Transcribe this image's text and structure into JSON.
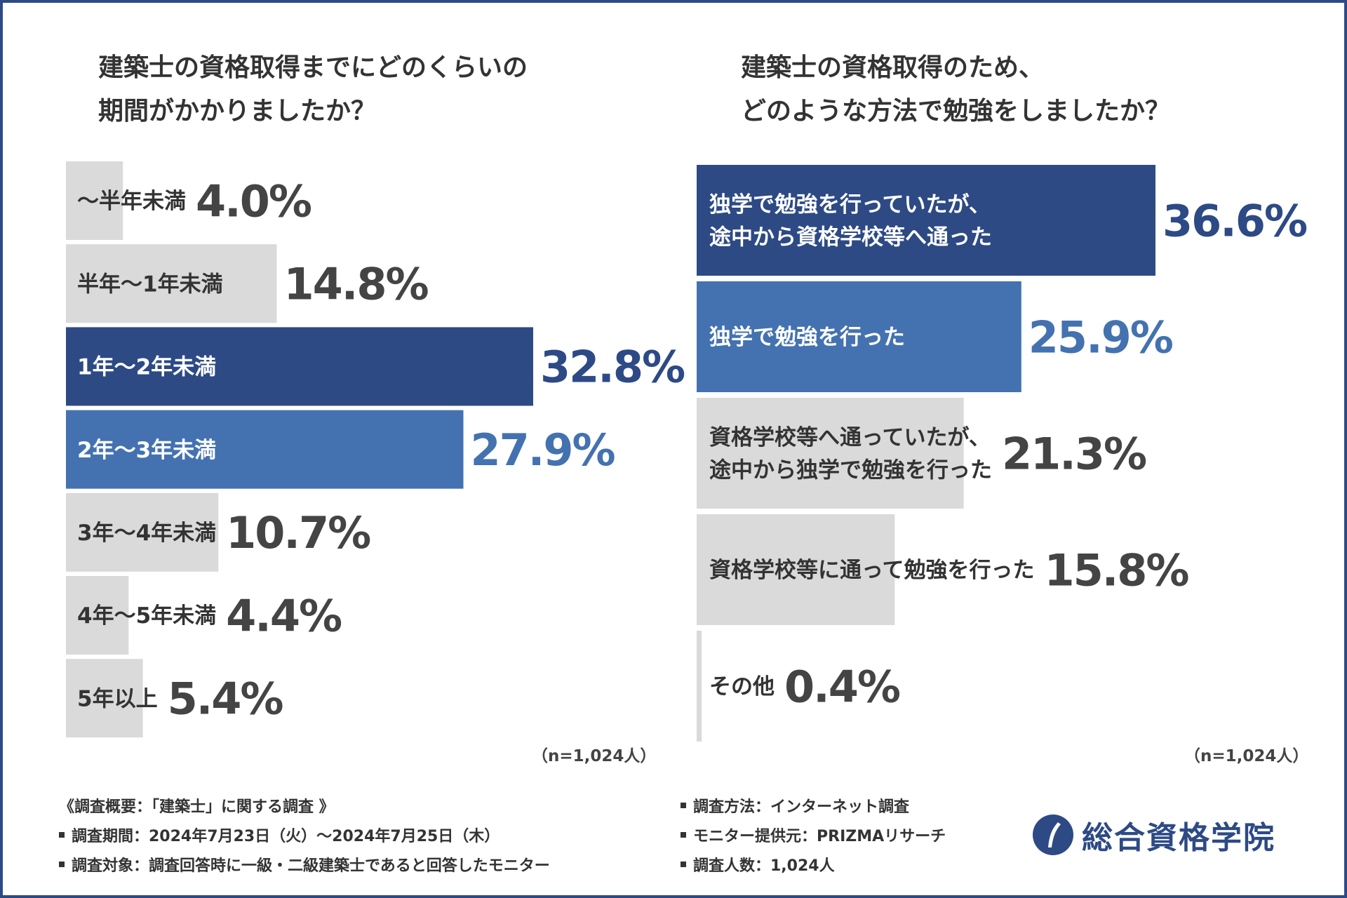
{
  "colors": {
    "dark": "#2d4a85",
    "mid": "#4472b0",
    "gray": "#dadada",
    "text": "#333333",
    "bar_text": "#ffffff"
  },
  "chart_data": [
    {
      "type": "bar",
      "orientation": "horizontal",
      "title": "建築士の資格取得までにどのくらいの期間がかかりましたか？",
      "title_lines": [
        "建築士の資格取得までにどのくらいの",
        "期間がかかりましたか？"
      ],
      "categories": [
        "〜半年未満",
        "半年〜1年未満",
        "1年〜2年未満",
        "2年〜3年未満",
        "3年〜4年未満",
        "4年〜5年未満",
        "5年以上"
      ],
      "values": [
        4.0,
        14.8,
        32.8,
        27.9,
        10.7,
        4.4,
        5.4
      ],
      "value_labels": [
        "4.0%",
        "14.8%",
        "32.8%",
        "27.9%",
        "10.7%",
        "4.4%",
        "5.4%"
      ],
      "highlight": [
        "gray",
        "gray",
        "dark",
        "mid",
        "gray",
        "gray",
        "gray"
      ],
      "xlim": [
        0,
        32.8
      ],
      "unit": "%",
      "note": "（n=1,024人）"
    },
    {
      "type": "bar",
      "orientation": "horizontal",
      "title": "建築士の資格取得のため、どのような方法で勉強をしましたか？",
      "title_lines": [
        "建築士の資格取得のため、",
        "どのような方法で勉強をしましたか？"
      ],
      "categories": [
        "独学で勉強を行っていたが、途中から資格学校等へ通った",
        "独学で勉強を行った",
        "資格学校等へ通っていたが、途中から独学で勉強を行った",
        "資格学校等に通って勉強を行った",
        "その他"
      ],
      "category_lines": [
        [
          "独学で勉強を行っていたが、",
          "途中から資格学校等へ通った"
        ],
        [
          "独学で勉強を行った"
        ],
        [
          "資格学校等へ通っていたが、",
          "途中から独学で勉強を行った"
        ],
        [
          "資格学校等に通って勉強を行った"
        ],
        [
          "その他"
        ]
      ],
      "values": [
        36.6,
        25.9,
        21.3,
        15.8,
        0.4
      ],
      "value_labels": [
        "36.6%",
        "25.9%",
        "21.3%",
        "15.8%",
        "0.4%"
      ],
      "highlight": [
        "dark",
        "mid",
        "gray",
        "gray",
        "gray"
      ],
      "xlim": [
        0,
        36.6
      ],
      "unit": "%",
      "note": "（n=1,024人）"
    }
  ],
  "footer": {
    "left": [
      "《調査概要：「建築士」に関する調査 》",
      "調査期間：2024年7月23日（火）〜2024年7月25日（木）",
      "調査対象：調査回答時に一級・二級建築士であると回答したモニター"
    ],
    "right": [
      "調査方法：インターネット調査",
      "モニター提供元：PRIZMAリサーチ",
      "調査人数：1,024人"
    ]
  },
  "logo": {
    "text": "総合資格学院",
    "icon": "company-logo-mark-icon"
  }
}
